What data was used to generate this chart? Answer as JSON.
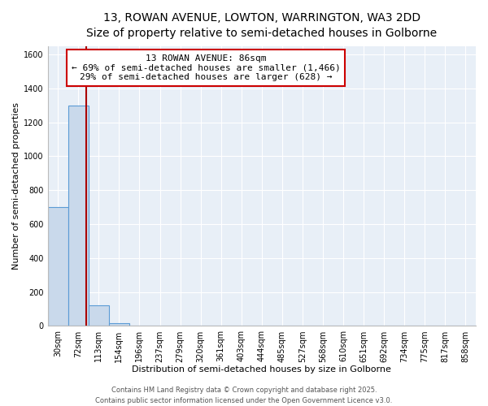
{
  "title_line1": "13, ROWAN AVENUE, LOWTON, WARRINGTON, WA3 2DD",
  "title_line2": "Size of property relative to semi-detached houses in Golborne",
  "xlabel": "Distribution of semi-detached houses by size in Golborne",
  "ylabel": "Number of semi-detached properties",
  "categories": [
    "30sqm",
    "72sqm",
    "113sqm",
    "154sqm",
    "196sqm",
    "237sqm",
    "279sqm",
    "320sqm",
    "361sqm",
    "403sqm",
    "444sqm",
    "485sqm",
    "527sqm",
    "568sqm",
    "610sqm",
    "651sqm",
    "692sqm",
    "734sqm",
    "775sqm",
    "817sqm",
    "858sqm"
  ],
  "values": [
    700,
    1300,
    120,
    15,
    0,
    0,
    0,
    0,
    0,
    0,
    0,
    0,
    0,
    0,
    0,
    0,
    0,
    0,
    0,
    0,
    0
  ],
  "bar_color": "#c9d9eb",
  "bar_edge_color": "#5b9bd5",
  "property_line_x": 1.38,
  "property_line_color": "#aa0000",
  "annotation_title": "13 ROWAN AVENUE: 86sqm",
  "annotation_line1": "← 69% of semi-detached houses are smaller (1,466)",
  "annotation_line2": "29% of semi-detached houses are larger (628) →",
  "annotation_box_color": "#ffffff",
  "annotation_box_edge_color": "#cc0000",
  "ylim": [
    0,
    1650
  ],
  "yticks": [
    0,
    200,
    400,
    600,
    800,
    1000,
    1200,
    1400,
    1600
  ],
  "background_color": "#ffffff",
  "plot_bg_color": "#e8eff7",
  "footer_line1": "Contains HM Land Registry data © Crown copyright and database right 2025.",
  "footer_line2": "Contains public sector information licensed under the Open Government Licence v3.0.",
  "grid_color": "#ffffff",
  "title_fontsize": 10,
  "subtitle_fontsize": 9,
  "axis_label_fontsize": 8,
  "tick_fontsize": 7,
  "annotation_fontsize": 8,
  "footer_fontsize": 6
}
